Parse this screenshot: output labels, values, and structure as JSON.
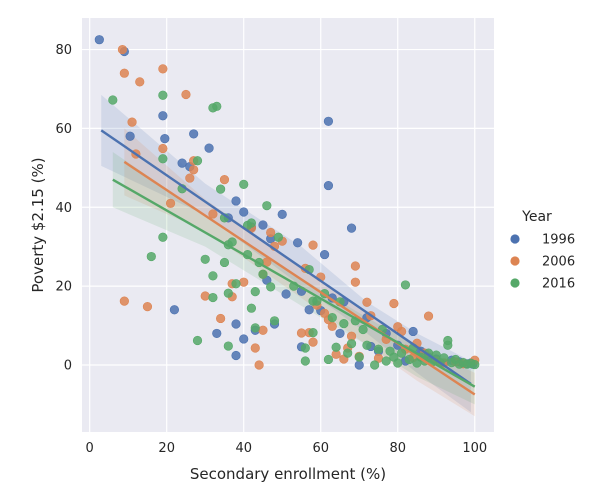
{
  "chart_data": {
    "type": "scatter",
    "title": "",
    "xlabel": "Secondary enrollment (%)",
    "ylabel": "Poverty $2.15 (%)",
    "xlim": [
      -2,
      105
    ],
    "ylim": [
      -17,
      88
    ],
    "xticks": [
      0,
      20,
      40,
      60,
      80,
      100
    ],
    "yticks": [
      0,
      20,
      40,
      60,
      80
    ],
    "grid": true,
    "legend": {
      "title": "Year",
      "position": "right"
    },
    "series": [
      {
        "name": "1996",
        "color": "#4c72b0",
        "fit": {
          "x_start": 3,
          "x_end": 99,
          "y_start": 59.5,
          "y_end": -4.8
        },
        "band_upper": [
          [
            3,
            68.5
          ],
          [
            30,
            46
          ],
          [
            55,
            30
          ],
          [
            72,
            16
          ],
          [
            85,
            8
          ],
          [
            99,
            1
          ]
        ],
        "band_lower": [
          [
            3,
            50.5
          ],
          [
            30,
            38
          ],
          [
            55,
            20
          ],
          [
            72,
            8
          ],
          [
            85,
            -2
          ],
          [
            99,
            -12
          ]
        ],
        "points": [
          [
            2.5,
            82.5
          ],
          [
            9,
            79.5
          ],
          [
            10.5,
            58
          ],
          [
            19,
            63.2
          ],
          [
            19.5,
            57.4
          ],
          [
            22,
            14
          ],
          [
            24,
            51.2
          ],
          [
            26,
            50.3
          ],
          [
            27,
            58.6
          ],
          [
            31,
            55
          ],
          [
            33,
            8
          ],
          [
            36,
            37.3
          ],
          [
            38,
            41.6
          ],
          [
            38,
            10.4
          ],
          [
            40,
            6.6
          ],
          [
            40,
            38.8
          ],
          [
            38,
            2.4
          ],
          [
            42,
            35
          ],
          [
            43,
            8.8
          ],
          [
            45,
            35.5
          ],
          [
            46,
            21.5
          ],
          [
            47,
            32
          ],
          [
            48,
            10.4
          ],
          [
            50,
            38.2
          ],
          [
            51,
            18
          ],
          [
            54,
            31
          ],
          [
            55,
            4.6
          ],
          [
            55,
            18.7
          ],
          [
            57,
            14
          ],
          [
            60,
            13.8
          ],
          [
            61,
            28
          ],
          [
            62,
            61.8
          ],
          [
            62,
            45.5
          ],
          [
            63,
            17
          ],
          [
            65,
            8
          ],
          [
            66,
            16
          ],
          [
            68,
            34.7
          ],
          [
            70,
            0
          ],
          [
            72,
            12
          ],
          [
            73,
            4.7
          ],
          [
            75,
            3.5
          ],
          [
            77,
            8
          ],
          [
            80,
            5
          ],
          [
            82,
            1
          ],
          [
            84,
            8.5
          ],
          [
            86,
            3.5
          ],
          [
            88,
            2
          ],
          [
            90,
            1.5
          ],
          [
            92,
            0.5
          ],
          [
            94,
            1.2
          ],
          [
            96,
            0.8
          ],
          [
            98,
            0.3
          ],
          [
            99,
            0.5
          ],
          [
            99.5,
            0.2
          ]
        ]
      },
      {
        "name": "2006",
        "color": "#dd8452",
        "fit": {
          "x_start": 9,
          "x_end": 100,
          "y_start": 51.5,
          "y_end": -7.5
        },
        "band_upper": [
          [
            9,
            60
          ],
          [
            30,
            42
          ],
          [
            55,
            25
          ],
          [
            72,
            13
          ],
          [
            85,
            5
          ],
          [
            100,
            -2
          ]
        ],
        "band_lower": [
          [
            9,
            43
          ],
          [
            30,
            34
          ],
          [
            55,
            17
          ],
          [
            72,
            5
          ],
          [
            85,
            -4
          ],
          [
            100,
            -13
          ]
        ],
        "points": [
          [
            8.5,
            80
          ],
          [
            9,
            16.2
          ],
          [
            9,
            74
          ],
          [
            11,
            61.6
          ],
          [
            12,
            53.5
          ],
          [
            13,
            71.8
          ],
          [
            15,
            14.8
          ],
          [
            19,
            75.1
          ],
          [
            19,
            54.9
          ],
          [
            21,
            41
          ],
          [
            25,
            68.6
          ],
          [
            26,
            47.4
          ],
          [
            27,
            49.5
          ],
          [
            27,
            51.8
          ],
          [
            30,
            17.5
          ],
          [
            32,
            38.3
          ],
          [
            34,
            11.8
          ],
          [
            35,
            47
          ],
          [
            37,
            17.3
          ],
          [
            37,
            20.6
          ],
          [
            40,
            21
          ],
          [
            42,
            34.7
          ],
          [
            43,
            4.3
          ],
          [
            44,
            0
          ],
          [
            45,
            23
          ],
          [
            45,
            8.8
          ],
          [
            46,
            26.1
          ],
          [
            47,
            33.6
          ],
          [
            48,
            30.1
          ],
          [
            50,
            31.4
          ],
          [
            55,
            8.1
          ],
          [
            56,
            24.5
          ],
          [
            57,
            8.2
          ],
          [
            58,
            30.4
          ],
          [
            58,
            5.8
          ],
          [
            59,
            15.2
          ],
          [
            60,
            22.3
          ],
          [
            61,
            13.1
          ],
          [
            62,
            11.5
          ],
          [
            63,
            9.8
          ],
          [
            64,
            2.7
          ],
          [
            66,
            1.5
          ],
          [
            67,
            4.3
          ],
          [
            68,
            7.3
          ],
          [
            69,
            25.1
          ],
          [
            69,
            21
          ],
          [
            70,
            2.2
          ],
          [
            72,
            15.9
          ],
          [
            73,
            12.5
          ],
          [
            75,
            1.7
          ],
          [
            77,
            6.5
          ],
          [
            79,
            15.6
          ],
          [
            80,
            9.7
          ],
          [
            81,
            8.5
          ],
          [
            82,
            4
          ],
          [
            84,
            1.9
          ],
          [
            85,
            5.5
          ],
          [
            87,
            3
          ],
          [
            88,
            12.4
          ],
          [
            90,
            1
          ],
          [
            92,
            0.5
          ],
          [
            95,
            0.8
          ],
          [
            97,
            0.3
          ],
          [
            100,
            1.2
          ]
        ]
      },
      {
        "name": "2016",
        "color": "#55a868",
        "fit": {
          "x_start": 6,
          "x_end": 100,
          "y_start": 47,
          "y_end": -5.5
        },
        "band_upper": [
          [
            6,
            54
          ],
          [
            30,
            38
          ],
          [
            55,
            22
          ],
          [
            72,
            12
          ],
          [
            85,
            5
          ],
          [
            100,
            -1
          ]
        ],
        "band_lower": [
          [
            6,
            40
          ],
          [
            30,
            30
          ],
          [
            55,
            15
          ],
          [
            72,
            5
          ],
          [
            85,
            -3
          ],
          [
            100,
            -10
          ]
        ],
        "points": [
          [
            6,
            67.2
          ],
          [
            16,
            27.5
          ],
          [
            19,
            68.4
          ],
          [
            19,
            52.3
          ],
          [
            19,
            32.4
          ],
          [
            24,
            44.7
          ],
          [
            28,
            6.2
          ],
          [
            28,
            51.8
          ],
          [
            30,
            26.8
          ],
          [
            32,
            17.1
          ],
          [
            32,
            22.6
          ],
          [
            32,
            65.2
          ],
          [
            33,
            65.6
          ],
          [
            34,
            44.6
          ],
          [
            35,
            26
          ],
          [
            35,
            37.3
          ],
          [
            36,
            30.5
          ],
          [
            36,
            18.2
          ],
          [
            36,
            4.8
          ],
          [
            37,
            31.2
          ],
          [
            38,
            20.6
          ],
          [
            40,
            45.8
          ],
          [
            41,
            35.4
          ],
          [
            41,
            28
          ],
          [
            42,
            36
          ],
          [
            42,
            14.4
          ],
          [
            43,
            18.6
          ],
          [
            43,
            9.4
          ],
          [
            44,
            26
          ],
          [
            45,
            23
          ],
          [
            46,
            40.4
          ],
          [
            47,
            19.8
          ],
          [
            48,
            11.2
          ],
          [
            49,
            32.4
          ],
          [
            53,
            20
          ],
          [
            56,
            1
          ],
          [
            56,
            4.3
          ],
          [
            57,
            24.2
          ],
          [
            58,
            16.2
          ],
          [
            58,
            8.2
          ],
          [
            59,
            16.2
          ],
          [
            61,
            18.1
          ],
          [
            62,
            1.4
          ],
          [
            63,
            12
          ],
          [
            64,
            4.5
          ],
          [
            65,
            16
          ],
          [
            66,
            10.5
          ],
          [
            67,
            3
          ],
          [
            68,
            5.4
          ],
          [
            69,
            11.2
          ],
          [
            70,
            2
          ],
          [
            71,
            9
          ],
          [
            72,
            5
          ],
          [
            74,
            0
          ],
          [
            75,
            4
          ],
          [
            76,
            9
          ],
          [
            77,
            1
          ],
          [
            78,
            3.5
          ],
          [
            79,
            2
          ],
          [
            80,
            0.5
          ],
          [
            81,
            3
          ],
          [
            82,
            20.3
          ],
          [
            83,
            1.4
          ],
          [
            84,
            4.3
          ],
          [
            85,
            0.5
          ],
          [
            86,
            2
          ],
          [
            87,
            1
          ],
          [
            88,
            3
          ],
          [
            89,
            0.8
          ],
          [
            90,
            2.5
          ],
          [
            91,
            0.6
          ],
          [
            92,
            1.8
          ],
          [
            93,
            6.2
          ],
          [
            93,
            5
          ],
          [
            94,
            0.6
          ],
          [
            95,
            1.4
          ],
          [
            96,
            0.2
          ],
          [
            97,
            0.6
          ],
          [
            98,
            0.2
          ],
          [
            99,
            0.4
          ],
          [
            100,
            0.1
          ]
        ]
      }
    ]
  }
}
